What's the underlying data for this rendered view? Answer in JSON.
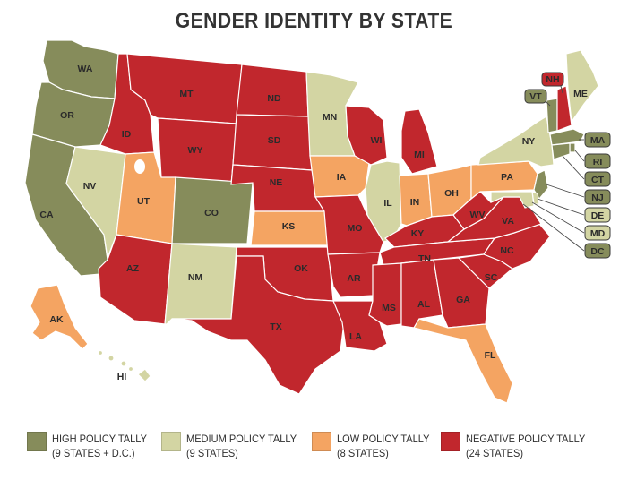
{
  "title": "GENDER IDENTITY BY STATE",
  "colors": {
    "high": "#868c5b",
    "medium": "#d3d5a3",
    "low": "#f4a462",
    "negative": "#c1272d"
  },
  "legend": [
    {
      "key": "high",
      "label": "HIGH POLICY TALLY",
      "sublabel": "(9 STATES + D.C.)"
    },
    {
      "key": "medium",
      "label": "MEDIUM POLICY TALLY",
      "sublabel": "(9 STATES)"
    },
    {
      "key": "low",
      "label": "LOW POLICY TALLY",
      "sublabel": "(8 STATES)"
    },
    {
      "key": "negative",
      "label": "NEGATIVE POLICY TALLY",
      "sublabel": "(24 STATES)"
    }
  ],
  "states": {
    "WA": "high",
    "OR": "high",
    "CA": "high",
    "CO": "high",
    "VT": "high",
    "MA": "high",
    "RI": "high",
    "CT": "high",
    "NJ": "high",
    "DC": "high",
    "NV": "medium",
    "NM": "medium",
    "MN": "medium",
    "IL": "medium",
    "NY": "medium",
    "ME": "medium",
    "DE": "medium",
    "MD": "medium",
    "HI": "medium",
    "UT": "low",
    "KS": "low",
    "IA": "low",
    "IN": "low",
    "OH": "low",
    "PA": "low",
    "AK": "low",
    "FL": "low",
    "ID": "negative",
    "MT": "negative",
    "WY": "negative",
    "ND": "negative",
    "SD": "negative",
    "NE": "negative",
    "AZ": "negative",
    "OK": "negative",
    "TX": "negative",
    "MO": "negative",
    "AR": "negative",
    "LA": "negative",
    "WI": "negative",
    "MI": "negative",
    "KY": "negative",
    "TN": "negative",
    "MS": "negative",
    "AL": "negative",
    "GA": "negative",
    "SC": "negative",
    "NC": "negative",
    "VA": "negative",
    "WV": "negative",
    "NH": "negative"
  }
}
